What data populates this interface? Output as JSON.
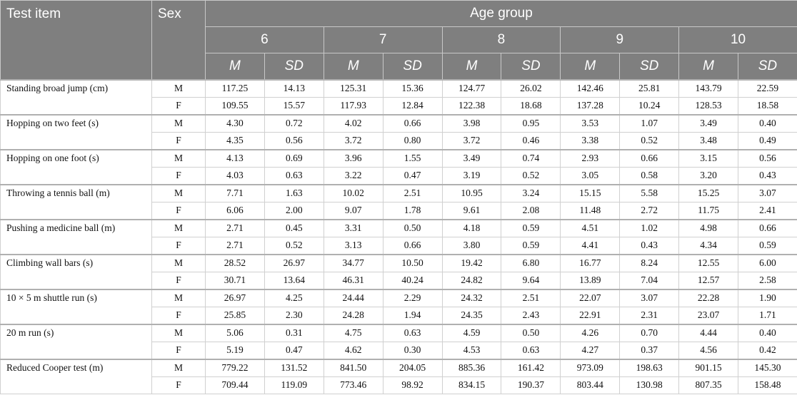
{
  "header": {
    "test_item": "Test item",
    "sex": "Sex",
    "age_group": "Age group",
    "ages": [
      "6",
      "7",
      "8",
      "9",
      "10"
    ],
    "stat_columns": [
      "M",
      "SD",
      "M",
      "SD",
      "M",
      "SD",
      "M",
      "SD",
      "M",
      "SD"
    ]
  },
  "tests": [
    {
      "name": "Standing broad jump (cm)",
      "rows": [
        {
          "sex": "M",
          "values": [
            "117.25",
            "14.13",
            "125.31",
            "15.36",
            "124.77",
            "26.02",
            "142.46",
            "25.81",
            "143.79",
            "22.59"
          ]
        },
        {
          "sex": "F",
          "values": [
            "109.55",
            "15.57",
            "117.93",
            "12.84",
            "122.38",
            "18.68",
            "137.28",
            "10.24",
            "128.53",
            "18.58"
          ]
        }
      ]
    },
    {
      "name": "Hopping on two feet (s)",
      "rows": [
        {
          "sex": "M",
          "values": [
            "4.30",
            "0.72",
            "4.02",
            "0.66",
            "3.98",
            "0.95",
            "3.53",
            "1.07",
            "3.49",
            "0.40"
          ]
        },
        {
          "sex": "F",
          "values": [
            "4.35",
            "0.56",
            "3.72",
            "0.80",
            "3.72",
            "0.46",
            "3.38",
            "0.52",
            "3.48",
            "0.49"
          ]
        }
      ]
    },
    {
      "name": "Hopping on one foot (s)",
      "rows": [
        {
          "sex": "M",
          "values": [
            "4.13",
            "0.69",
            "3.96",
            "1.55",
            "3.49",
            "0.74",
            "2.93",
            "0.66",
            "3.15",
            "0.56"
          ]
        },
        {
          "sex": "F",
          "values": [
            "4.03",
            "0.63",
            "3.22",
            "0.47",
            "3.19",
            "0.52",
            "3.05",
            "0.58",
            "3.20",
            "0.43"
          ]
        }
      ]
    },
    {
      "name": "Throwing a tennis ball (m)",
      "rows": [
        {
          "sex": "M",
          "values": [
            "7.71",
            "1.63",
            "10.02",
            "2.51",
            "10.95",
            "3.24",
            "15.15",
            "5.58",
            "15.25",
            "3.07"
          ]
        },
        {
          "sex": "F",
          "values": [
            "6.06",
            "2.00",
            "9.07",
            "1.78",
            "9.61",
            "2.08",
            "11.48",
            "2.72",
            "11.75",
            "2.41"
          ]
        }
      ]
    },
    {
      "name": "Pushing a medicine ball (m)",
      "rows": [
        {
          "sex": "M",
          "values": [
            "2.71",
            "0.45",
            "3.31",
            "0.50",
            "4.18",
            "0.59",
            "4.51",
            "1.02",
            "4.98",
            "0.66"
          ]
        },
        {
          "sex": "F",
          "values": [
            "2.71",
            "0.52",
            "3.13",
            "0.66",
            "3.80",
            "0.59",
            "4.41",
            "0.43",
            "4.34",
            "0.59"
          ]
        }
      ]
    },
    {
      "name": "Climbing wall bars (s)",
      "rows": [
        {
          "sex": "M",
          "values": [
            "28.52",
            "26.97",
            "34.77",
            "10.50",
            "19.42",
            "6.80",
            "16.77",
            "8.24",
            "12.55",
            "6.00"
          ]
        },
        {
          "sex": "F",
          "values": [
            "30.71",
            "13.64",
            "46.31",
            "40.24",
            "24.82",
            "9.64",
            "13.89",
            "7.04",
            "12.57",
            "2.58"
          ]
        }
      ]
    },
    {
      "name": "10 × 5 m shuttle run (s)",
      "rows": [
        {
          "sex": "M",
          "values": [
            "26.97",
            "4.25",
            "24.44",
            "2.29",
            "24.32",
            "2.51",
            "22.07",
            "3.07",
            "22.28",
            "1.90"
          ]
        },
        {
          "sex": "F",
          "values": [
            "25.85",
            "2.30",
            "24.28",
            "1.94",
            "24.35",
            "2.43",
            "22.91",
            "2.31",
            "23.07",
            "1.71"
          ]
        }
      ]
    },
    {
      "name": "20 m run (s)",
      "rows": [
        {
          "sex": "M",
          "values": [
            "5.06",
            "0.31",
            "4.75",
            "0.63",
            "4.59",
            "0.50",
            "4.26",
            "0.70",
            "4.44",
            "0.40"
          ]
        },
        {
          "sex": "F",
          "values": [
            "5.19",
            "0.47",
            "4.62",
            "0.30",
            "4.53",
            "0.63",
            "4.27",
            "0.37",
            "4.56",
            "0.42"
          ]
        }
      ]
    },
    {
      "name": "Reduced Cooper test (m)",
      "rows": [
        {
          "sex": "M",
          "values": [
            "779.22",
            "131.52",
            "841.50",
            "204.05",
            "885.36",
            "161.42",
            "973.09",
            "198.63",
            "901.15",
            "145.30"
          ]
        },
        {
          "sex": "F",
          "values": [
            "709.44",
            "119.09",
            "773.46",
            "98.92",
            "834.15",
            "190.37",
            "803.44",
            "130.98",
            "807.35",
            "158.48"
          ]
        }
      ]
    }
  ]
}
